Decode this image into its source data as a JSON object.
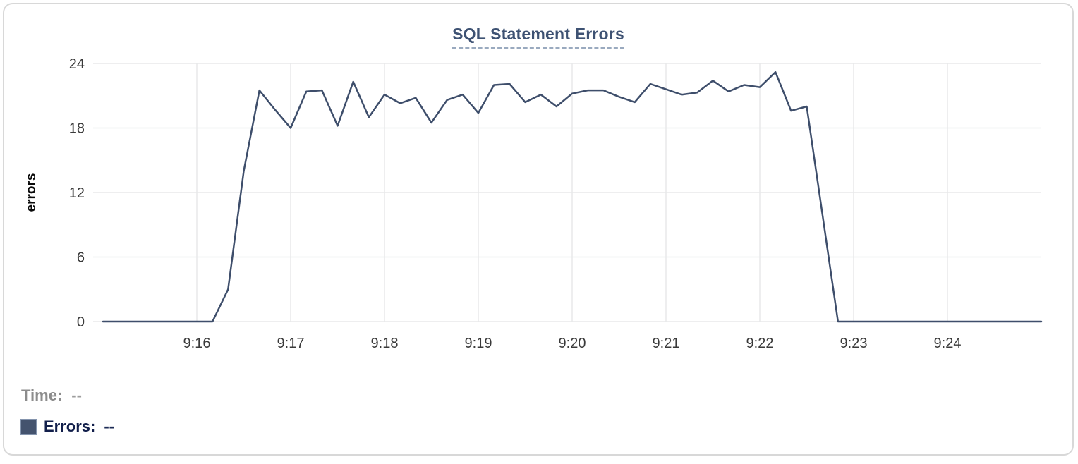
{
  "chart": {
    "title": "SQL Statement Errors",
    "ylabel": "errors"
  },
  "legend": {
    "time_label": "Time:",
    "time_value": "--",
    "errors_label": "Errors:",
    "errors_value": "--"
  },
  "colors": {
    "line": "#3e4e6b",
    "grid": "#e8e9ea",
    "tick_text": "#3a3a3a",
    "title_text": "#3e5273",
    "title_underline": "#9aaabf",
    "time_label": "#8c8c8c",
    "errors_label": "#121f4b",
    "legend_swatch": "#44536e",
    "card_border": "#d8d8d8"
  },
  "chart_data": {
    "type": "line",
    "title": "SQL Statement Errors",
    "xlabel": "",
    "ylabel": "errors",
    "ylim": [
      0,
      24
    ],
    "y_ticks": [
      0,
      6,
      12,
      18,
      24
    ],
    "x_ticks": [
      {
        "label": "9:16",
        "offset_min": 1
      },
      {
        "label": "9:17",
        "offset_min": 2
      },
      {
        "label": "9:18",
        "offset_min": 3
      },
      {
        "label": "9:19",
        "offset_min": 4
      },
      {
        "label": "9:20",
        "offset_min": 5
      },
      {
        "label": "9:21",
        "offset_min": 6
      },
      {
        "label": "9:22",
        "offset_min": 7
      },
      {
        "label": "9:23",
        "offset_min": 8
      },
      {
        "label": "9:24",
        "offset_min": 9
      }
    ],
    "x_range": [
      "9:15:00",
      "9:25:00"
    ],
    "interval_seconds": 10,
    "grid": true,
    "legend_position": "bottom-left",
    "series": [
      {
        "name": "Errors",
        "color": "#3e4e6b",
        "times": [
          "9:15:00",
          "9:15:10",
          "9:15:20",
          "9:15:30",
          "9:15:40",
          "9:15:50",
          "9:16:00",
          "9:16:10",
          "9:16:20",
          "9:16:30",
          "9:16:40",
          "9:16:50",
          "9:17:00",
          "9:17:10",
          "9:17:20",
          "9:17:30",
          "9:17:40",
          "9:17:50",
          "9:18:00",
          "9:18:10",
          "9:18:20",
          "9:18:30",
          "9:18:40",
          "9:18:50",
          "9:19:00",
          "9:19:10",
          "9:19:20",
          "9:19:30",
          "9:19:40",
          "9:19:50",
          "9:20:00",
          "9:20:10",
          "9:20:20",
          "9:20:30",
          "9:20:40",
          "9:20:50",
          "9:21:00",
          "9:21:10",
          "9:21:20",
          "9:21:30",
          "9:21:40",
          "9:21:50",
          "9:22:00",
          "9:22:10",
          "9:22:20",
          "9:22:30",
          "9:22:40",
          "9:22:50",
          "9:23:00",
          "9:23:10",
          "9:23:20",
          "9:23:30",
          "9:23:40",
          "9:23:50",
          "9:24:00",
          "9:24:10",
          "9:24:20",
          "9:24:30",
          "9:24:40",
          "9:24:50",
          "9:25:00"
        ],
        "values": [
          0,
          0,
          0,
          0,
          0,
          0,
          0,
          0,
          3,
          14,
          21.5,
          19.7,
          18,
          21.4,
          21.5,
          18.2,
          22.3,
          19,
          21.1,
          20.3,
          20.8,
          18.5,
          20.6,
          21.1,
          19.4,
          22,
          22.1,
          20.4,
          21.1,
          20,
          21.2,
          21.5,
          21.5,
          20.9,
          20.4,
          22.1,
          21.6,
          21.1,
          21.3,
          22.4,
          21.4,
          22,
          21.8,
          23.2,
          19.6,
          20,
          10,
          0,
          0,
          0,
          0,
          0,
          0,
          0,
          0,
          0,
          0,
          0,
          0,
          0,
          0
        ]
      }
    ]
  }
}
